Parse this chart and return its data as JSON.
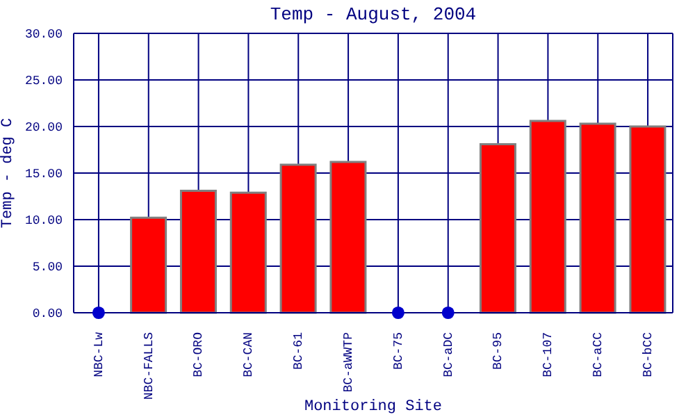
{
  "chart_data": {
    "type": "bar",
    "title": "Temp - August, 2004",
    "xlabel": "Monitoring Site",
    "ylabel": "Temp - deg C",
    "categories": [
      "NBC-Lw",
      "NBC-FALLS",
      "BC-ORO",
      "BC-CAN",
      "BC-61",
      "BC-aWWTP",
      "BC-75",
      "BC-aDC",
      "BC-95",
      "BC-107",
      "BC-aCC",
      "BC-bCC"
    ],
    "series": [
      {
        "color": "#ff0000",
        "values": [
          null,
          10.2,
          13.1,
          12.9,
          15.9,
          16.2,
          null,
          null,
          18.1,
          20.6,
          20.3,
          20.0
        ]
      },
      {
        "type": "scatter",
        "color": "#0000cc",
        "values": [
          0,
          null,
          null,
          null,
          null,
          null,
          0,
          0,
          null,
          null,
          null,
          null
        ]
      }
    ],
    "ylim": [
      0,
      30
    ],
    "yticks": [
      {
        "value": 0,
        "label": "0.00"
      },
      {
        "value": 5,
        "label": "5.00"
      },
      {
        "value": 10,
        "label": "10.00"
      },
      {
        "value": 15,
        "label": "15.00"
      },
      {
        "value": 20,
        "label": "20.00"
      },
      {
        "value": 25,
        "label": "25.00"
      },
      {
        "value": 30,
        "label": "30.00"
      }
    ],
    "grid": true,
    "marker": "circle"
  }
}
